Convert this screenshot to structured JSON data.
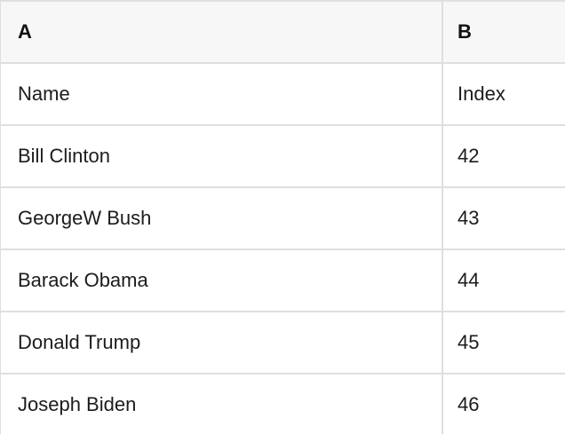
{
  "theme": {
    "header_bg": "#f7f7f7",
    "row_bg": "#ffffff",
    "border_color": "#dfdfdf",
    "header_text_color": "#111111",
    "cell_text_color": "#1c1c1c"
  },
  "spreadsheet": {
    "column_headers": [
      {
        "label": "A"
      },
      {
        "label": "B"
      }
    ],
    "field_labels": {
      "a": "Name",
      "b": "Index"
    },
    "rows": [
      {
        "a": "Name",
        "b": "Index"
      },
      {
        "a": "Bill Clinton",
        "b": "42"
      },
      {
        "a": "GeorgeW Bush",
        "b": "43"
      },
      {
        "a": "Barack Obama",
        "b": "44"
      },
      {
        "a": "Donald Trump",
        "b": "45"
      },
      {
        "a": "Joseph Biden",
        "b": "46"
      }
    ]
  }
}
